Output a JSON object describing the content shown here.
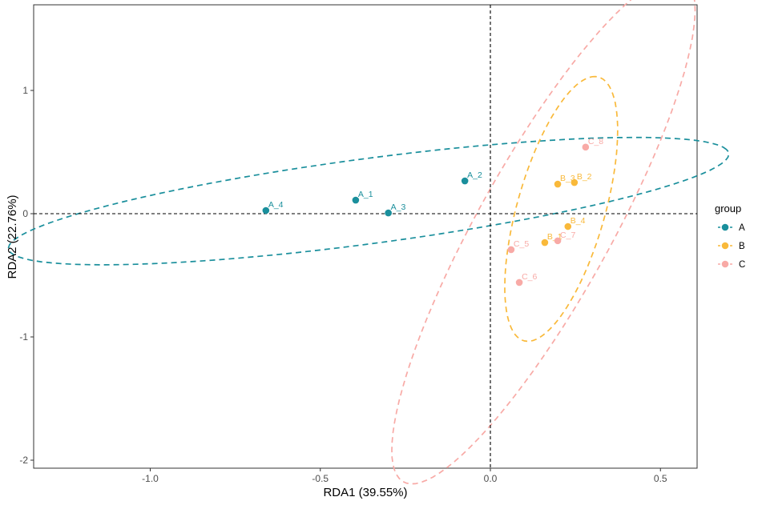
{
  "chart_data": {
    "type": "scatter",
    "xlabel": "RDA1 (39.55%)",
    "ylabel": "RDA2 (22.76%)",
    "xlim": [
      -1.34,
      0.61
    ],
    "ylim": [
      -2.06,
      1.69
    ],
    "xticks": [
      -1.0,
      -0.5,
      0.0,
      0.5
    ],
    "xtick_labels": [
      "-1.0",
      "-0.5",
      "0.0",
      "0.5"
    ],
    "yticks": [
      -2,
      -1,
      0,
      1
    ],
    "ytick_labels": [
      "-2",
      "-1",
      "0",
      "1"
    ],
    "grid": false,
    "reference_lines": {
      "x": 0,
      "y": 0,
      "style": "dashed"
    },
    "ellipses": "dashed, one per group",
    "legend": {
      "title": "group",
      "position": "right"
    },
    "series": [
      {
        "name": "A",
        "color": "#1a8f9c",
        "points": [
          {
            "label": "A_1",
            "x": -0.396,
            "y": 0.11
          },
          {
            "label": "A_2",
            "x": -0.075,
            "y": 0.266
          },
          {
            "label": "A_3",
            "x": -0.3,
            "y": 0.006
          },
          {
            "label": "A_4",
            "x": -0.66,
            "y": 0.026
          }
        ]
      },
      {
        "name": "B",
        "color": "#f9b93a",
        "points": [
          {
            "label": "B_1",
            "x": 0.16,
            "y": -0.234
          },
          {
            "label": "B_2",
            "x": 0.247,
            "y": 0.253
          },
          {
            "label": "B_3",
            "x": 0.198,
            "y": 0.24
          },
          {
            "label": "B_4",
            "x": 0.228,
            "y": -0.104
          }
        ]
      },
      {
        "name": "C",
        "color": "#f8aaa6",
        "points": [
          {
            "label": "C_5",
            "x": 0.061,
            "y": -0.292
          },
          {
            "label": "C_6",
            "x": 0.085,
            "y": -0.558
          },
          {
            "label": "C_7",
            "x": 0.198,
            "y": -0.22
          },
          {
            "label": "C_8",
            "x": 0.28,
            "y": 0.54
          }
        ]
      }
    ]
  }
}
